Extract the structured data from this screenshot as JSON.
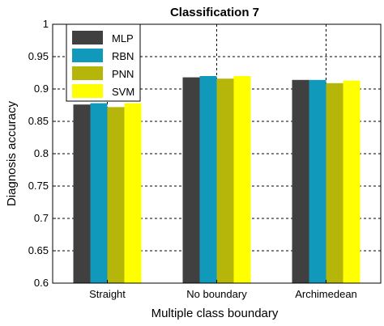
{
  "chart_data": {
    "type": "bar",
    "title": "Classification 7",
    "xlabel": "Multiple class boundary",
    "ylabel": "Diagnosis accuracy",
    "ylim": [
      0.6,
      1.0
    ],
    "yticks": [
      "0.6",
      "0.65",
      "0.7",
      "0.75",
      "0.8",
      "0.85",
      "0.9",
      "0.95",
      "1"
    ],
    "categories": [
      "Straight",
      "No boundary",
      "Archimedean"
    ],
    "grid": true,
    "legend_position": "top-left",
    "series": [
      {
        "name": "MLP",
        "color": "#404040",
        "values": [
          0.876,
          0.918,
          0.914
        ]
      },
      {
        "name": "RBN",
        "color": "#1199bb",
        "values": [
          0.878,
          0.92,
          0.914
        ]
      },
      {
        "name": "PNN",
        "color": "#b5b50a",
        "values": [
          0.872,
          0.916,
          0.909
        ]
      },
      {
        "name": "SVM",
        "color": "#ffff00",
        "values": [
          0.878,
          0.92,
          0.913
        ]
      }
    ]
  }
}
